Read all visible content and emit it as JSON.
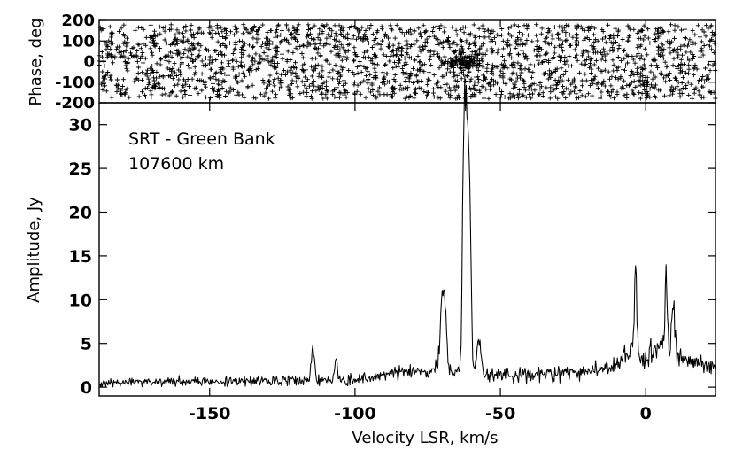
{
  "chart_data": [
    {
      "type": "scatter",
      "panel": "phase",
      "ylabel": "Phase, deg",
      "xlim": [
        -188,
        24
      ],
      "ylim": [
        -200,
        200
      ],
      "yticks": [
        200,
        100,
        0,
        -100,
        -200
      ],
      "yticklabels": [
        "200",
        "100",
        "0",
        "-100",
        "-200"
      ],
      "marker": "+",
      "color": "#000000",
      "series": [
        {
          "x_range": [
            -188,
            24
          ],
          "y_range": [
            -180,
            180
          ],
          "distribution": "uniform",
          "point_count": 2200,
          "cluster": {
            "x_center": -62,
            "y_center": 0,
            "y_spread": 15,
            "x_spread": 3
          }
        }
      ]
    },
    {
      "type": "line",
      "panel": "amplitude",
      "xlabel": "Velocity LSR, km/s",
      "ylabel": "Amplitude, Jy",
      "xlim": [
        -188,
        24
      ],
      "ylim": [
        -1,
        32.5
      ],
      "xticks": [
        -150,
        -100,
        -50,
        0
      ],
      "xticklabels": [
        "-150",
        "-100",
        "-50",
        "0"
      ],
      "yticks": [
        0,
        5,
        10,
        15,
        20,
        25,
        30
      ],
      "yticklabels": [
        "0",
        "5",
        "10",
        "15",
        "20",
        "25",
        "30"
      ],
      "color": "#000000",
      "annotations": [
        "SRT - Green Bank",
        "107600 km"
      ],
      "series": [
        {
          "baseline_knots": [
            [
              -188,
              0.4
            ],
            [
              -170,
              0.6
            ],
            [
              -150,
              0.7
            ],
            [
              -130,
              0.7
            ],
            [
              -120,
              0.8
            ],
            [
              -100,
              0.9
            ],
            [
              -90,
              1.3
            ],
            [
              -85,
              2.0
            ],
            [
              -80,
              1.6
            ],
            [
              -75,
              1.5
            ],
            [
              -72,
              2.2
            ],
            [
              -55,
              1.4
            ],
            [
              -45,
              1.5
            ],
            [
              -30,
              1.6
            ],
            [
              -20,
              1.8
            ],
            [
              -10,
              2.5
            ],
            [
              -5,
              4.5
            ],
            [
              0,
              3.0
            ],
            [
              5,
              5.0
            ],
            [
              10,
              4.0
            ],
            [
              15,
              3.0
            ],
            [
              20,
              2.5
            ],
            [
              24,
              2.0
            ]
          ],
          "peaks": [
            {
              "x": -114.5,
              "height": 3.8,
              "width": 0.5
            },
            {
              "x": -106.5,
              "height": 2.6,
              "width": 0.4
            },
            {
              "x": -70.0,
              "height": 7.5,
              "width": 0.7
            },
            {
              "x": -69.0,
              "height": 4.5,
              "width": 0.6
            },
            {
              "x": -62.5,
              "height": 27.5,
              "width": 0.5
            },
            {
              "x": -61.5,
              "height": 24.0,
              "width": 0.5
            },
            {
              "x": -60.5,
              "height": 16.5,
              "width": 0.5
            },
            {
              "x": -57.5,
              "height": 3.5,
              "width": 0.8
            },
            {
              "x": -3.5,
              "height": 9.0,
              "width": 0.4
            },
            {
              "x": 7.0,
              "height": 7.0,
              "width": 0.4
            },
            {
              "x": 9.5,
              "height": 5.5,
              "width": 0.5
            }
          ],
          "noise_sigma": 0.35,
          "sample_step": 0.25
        }
      ]
    }
  ]
}
